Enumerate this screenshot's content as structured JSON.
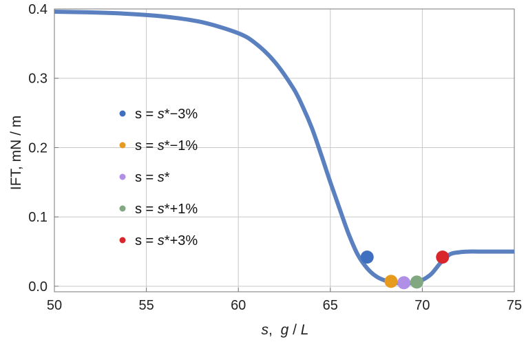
{
  "chart_data": {
    "type": "line",
    "xlabel": {
      "var": "s",
      "sep": ",  ",
      "unit_num": "g",
      "unit_sep": " / ",
      "unit_den": "L"
    },
    "ylabel": "IFT,  mN / m",
    "xlim": [
      50,
      75
    ],
    "ylim": [
      -0.008,
      0.4
    ],
    "x_ticks": [
      50,
      55,
      60,
      65,
      70,
      75
    ],
    "x_tick_labels": [
      "50",
      "55",
      "60",
      "65",
      "70",
      "75"
    ],
    "y_ticks": [
      0.0,
      0.1,
      0.2,
      0.3,
      0.4
    ],
    "y_tick_labels": [
      "0.0",
      "0.1",
      "0.2",
      "0.3",
      "0.4"
    ],
    "grid": true,
    "curve": {
      "color": "#5b80bf",
      "x": [
        50,
        52,
        54,
        56,
        58,
        60,
        61,
        62,
        63,
        63.5,
        64,
        64.5,
        65,
        65.5,
        66,
        66.5,
        67,
        67.5,
        68,
        68.5,
        69,
        69.5,
        70,
        70.5,
        71,
        71.5,
        72,
        72.5,
        73,
        74,
        75
      ],
      "y": [
        0.396,
        0.395,
        0.393,
        0.389,
        0.381,
        0.365,
        0.349,
        0.323,
        0.285,
        0.259,
        0.228,
        0.19,
        0.15,
        0.112,
        0.075,
        0.045,
        0.026,
        0.014,
        0.008,
        0.005,
        0.004,
        0.005,
        0.009,
        0.018,
        0.034,
        0.046,
        0.049,
        0.05,
        0.05,
        0.05,
        0.05
      ]
    },
    "points": [
      {
        "x": 67.0,
        "y": 0.042,
        "color": "#3f6fbf"
      },
      {
        "x": 68.3,
        "y": 0.007,
        "color": "#e69a1e"
      },
      {
        "x": 69.0,
        "y": 0.005,
        "color": "#b08fe6"
      },
      {
        "x": 69.7,
        "y": 0.006,
        "color": "#82a882"
      },
      {
        "x": 71.1,
        "y": 0.042,
        "color": "#d8262b"
      }
    ],
    "legend": {
      "placement": "left-middle",
      "entries": [
        {
          "color": "#3f6fbf",
          "prefix": "s = ",
          "sym": "s",
          "suffix": "*−3%"
        },
        {
          "color": "#e69a1e",
          "prefix": "s = ",
          "sym": "s",
          "suffix": "*−1%"
        },
        {
          "color": "#b08fe6",
          "prefix": "s = ",
          "sym": "s",
          "suffix": "*"
        },
        {
          "color": "#82a882",
          "prefix": "s = ",
          "sym": "s",
          "suffix": "*+1%"
        },
        {
          "color": "#d8262b",
          "prefix": "s = ",
          "sym": "s",
          "suffix": "*+3%"
        }
      ]
    }
  }
}
